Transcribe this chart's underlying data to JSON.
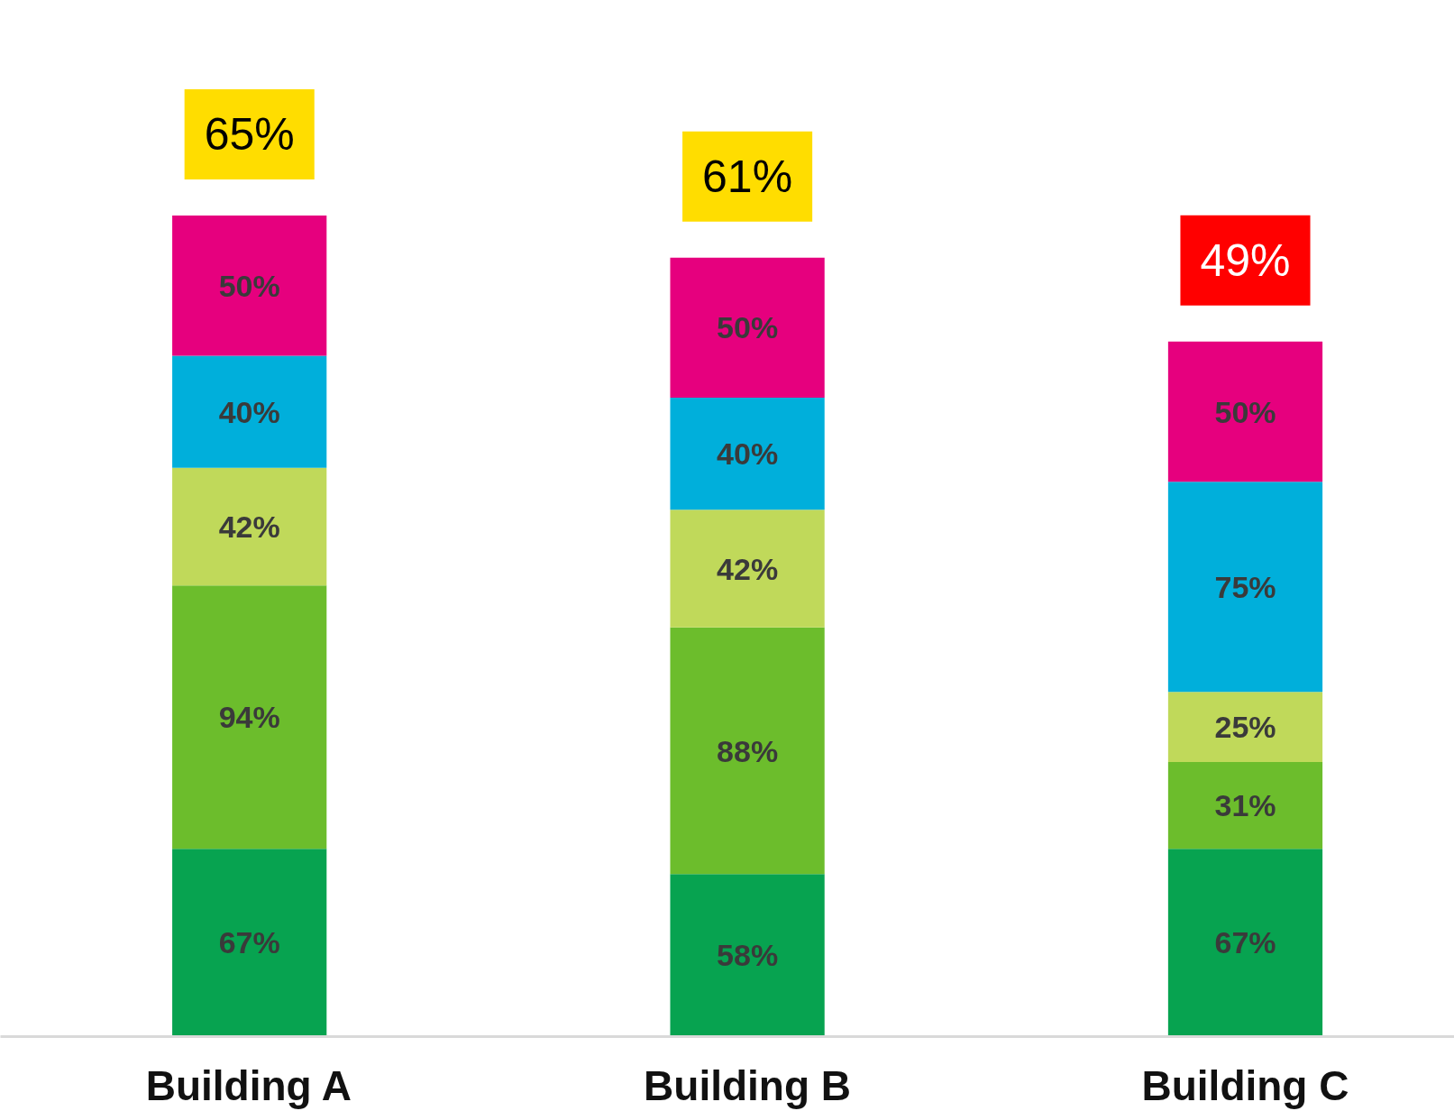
{
  "chart_data": {
    "type": "bar",
    "stacked": true,
    "categories": [
      "Building A",
      "Building B",
      "Building C"
    ],
    "series": [
      {
        "color": "#07a350",
        "values": [
          67,
          58,
          67
        ],
        "value_labels": [
          "67%",
          "58%",
          "67%"
        ]
      },
      {
        "color": "#6cbd2c",
        "values": [
          94,
          88,
          31
        ],
        "value_labels": [
          "94%",
          "88%",
          "31%"
        ]
      },
      {
        "color": "#c0d95a",
        "values": [
          42,
          42,
          25
        ],
        "value_labels": [
          "42%",
          "42%",
          "25%"
        ]
      },
      {
        "color": "#00afdb",
        "values": [
          40,
          40,
          75
        ],
        "value_labels": [
          "40%",
          "40%",
          "75%"
        ]
      },
      {
        "color": "#e6007e",
        "values": [
          50,
          50,
          50
        ],
        "value_labels": [
          "50%",
          "50%",
          "50%"
        ]
      }
    ],
    "annotations": [
      {
        "text": "65%",
        "x": "Building A",
        "y": 293
      },
      {
        "text": "61%",
        "x": "Building B",
        "y": 278
      },
      {
        "text": "49%",
        "x": "Building C",
        "y": 248
      }
    ],
    "grid": false
  }
}
